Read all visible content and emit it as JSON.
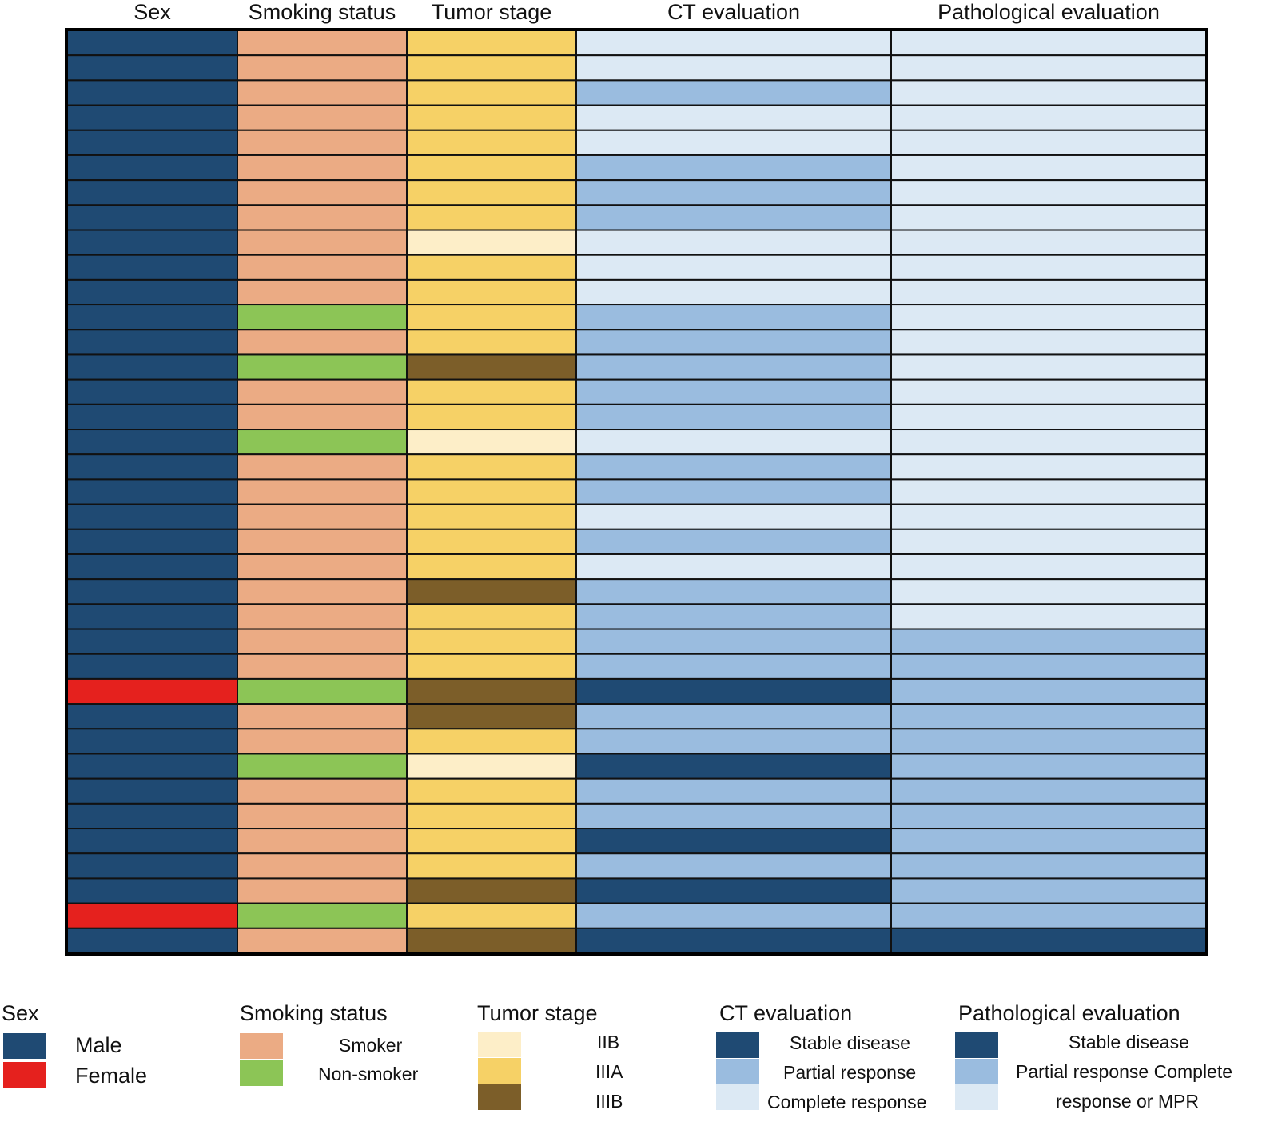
{
  "chart_data": {
    "type": "heatmap",
    "columns": [
      {
        "key": "sex",
        "label": "Sex"
      },
      {
        "key": "smoking",
        "label": "Smoking status"
      },
      {
        "key": "stage",
        "label": "Tumor stage"
      },
      {
        "key": "ct",
        "label": "CT evaluation"
      },
      {
        "key": "path",
        "label": "Pathological evaluation"
      }
    ],
    "categories": {
      "sex": [
        {
          "code": "M",
          "label": "Male",
          "color": "#1f4a73"
        },
        {
          "code": "F",
          "label": "Female",
          "color": "#e5211e"
        }
      ],
      "smoking": [
        {
          "code": "S",
          "label": "Smoker",
          "color": "#ebab84"
        },
        {
          "code": "N",
          "label": "Non-smoker",
          "color": "#8cc556"
        }
      ],
      "stage": [
        {
          "code": "IIB",
          "label": "IIB",
          "color": "#fdeec8"
        },
        {
          "code": "IIIA",
          "label": "IIIA",
          "color": "#f6d166"
        },
        {
          "code": "IIIB",
          "label": "IIIB",
          "color": "#7c5e29"
        }
      ],
      "ct": [
        {
          "code": "SD",
          "label": "Stable disease",
          "color": "#1f4a73"
        },
        {
          "code": "PR",
          "label": "Partial response",
          "color": "#9abcdf"
        },
        {
          "code": "CR",
          "label": "Complete response",
          "color": "#dce9f4"
        }
      ],
      "path": [
        {
          "code": "SD",
          "label": "Stable disease",
          "color": "#1f4a73"
        },
        {
          "code": "PR",
          "label": "Partial response Complete",
          "color": "#9abcdf"
        },
        {
          "code": "CR",
          "label": "response or MPR",
          "color": "#dce9f4"
        }
      ]
    },
    "rows": [
      {
        "sex": "M",
        "smoking": "S",
        "stage": "IIIA",
        "ct": "CR",
        "path": "CR"
      },
      {
        "sex": "M",
        "smoking": "S",
        "stage": "IIIA",
        "ct": "CR",
        "path": "CR"
      },
      {
        "sex": "M",
        "smoking": "S",
        "stage": "IIIA",
        "ct": "PR",
        "path": "CR"
      },
      {
        "sex": "M",
        "smoking": "S",
        "stage": "IIIA",
        "ct": "CR",
        "path": "CR"
      },
      {
        "sex": "M",
        "smoking": "S",
        "stage": "IIIA",
        "ct": "CR",
        "path": "CR"
      },
      {
        "sex": "M",
        "smoking": "S",
        "stage": "IIIA",
        "ct": "PR",
        "path": "CR"
      },
      {
        "sex": "M",
        "smoking": "S",
        "stage": "IIIA",
        "ct": "PR",
        "path": "CR"
      },
      {
        "sex": "M",
        "smoking": "S",
        "stage": "IIIA",
        "ct": "PR",
        "path": "CR"
      },
      {
        "sex": "M",
        "smoking": "S",
        "stage": "IIB",
        "ct": "CR",
        "path": "CR"
      },
      {
        "sex": "M",
        "smoking": "S",
        "stage": "IIIA",
        "ct": "CR",
        "path": "CR"
      },
      {
        "sex": "M",
        "smoking": "S",
        "stage": "IIIA",
        "ct": "CR",
        "path": "CR"
      },
      {
        "sex": "M",
        "smoking": "N",
        "stage": "IIIA",
        "ct": "PR",
        "path": "CR"
      },
      {
        "sex": "M",
        "smoking": "S",
        "stage": "IIIA",
        "ct": "PR",
        "path": "CR"
      },
      {
        "sex": "M",
        "smoking": "N",
        "stage": "IIIB",
        "ct": "PR",
        "path": "CR"
      },
      {
        "sex": "M",
        "smoking": "S",
        "stage": "IIIA",
        "ct": "PR",
        "path": "CR"
      },
      {
        "sex": "M",
        "smoking": "S",
        "stage": "IIIA",
        "ct": "PR",
        "path": "CR"
      },
      {
        "sex": "M",
        "smoking": "N",
        "stage": "IIB",
        "ct": "CR",
        "path": "CR"
      },
      {
        "sex": "M",
        "smoking": "S",
        "stage": "IIIA",
        "ct": "PR",
        "path": "CR"
      },
      {
        "sex": "M",
        "smoking": "S",
        "stage": "IIIA",
        "ct": "PR",
        "path": "CR"
      },
      {
        "sex": "M",
        "smoking": "S",
        "stage": "IIIA",
        "ct": "CR",
        "path": "CR"
      },
      {
        "sex": "M",
        "smoking": "S",
        "stage": "IIIA",
        "ct": "PR",
        "path": "CR"
      },
      {
        "sex": "M",
        "smoking": "S",
        "stage": "IIIA",
        "ct": "CR",
        "path": "CR"
      },
      {
        "sex": "M",
        "smoking": "S",
        "stage": "IIIB",
        "ct": "PR",
        "path": "CR"
      },
      {
        "sex": "M",
        "smoking": "S",
        "stage": "IIIA",
        "ct": "PR",
        "path": "CR"
      },
      {
        "sex": "M",
        "smoking": "S",
        "stage": "IIIA",
        "ct": "PR",
        "path": "PR"
      },
      {
        "sex": "M",
        "smoking": "S",
        "stage": "IIIA",
        "ct": "PR",
        "path": "PR"
      },
      {
        "sex": "F",
        "smoking": "N",
        "stage": "IIIB",
        "ct": "SD",
        "path": "PR"
      },
      {
        "sex": "M",
        "smoking": "S",
        "stage": "IIIB",
        "ct": "PR",
        "path": "PR"
      },
      {
        "sex": "M",
        "smoking": "S",
        "stage": "IIIA",
        "ct": "PR",
        "path": "PR"
      },
      {
        "sex": "M",
        "smoking": "N",
        "stage": "IIB",
        "ct": "SD",
        "path": "PR"
      },
      {
        "sex": "M",
        "smoking": "S",
        "stage": "IIIA",
        "ct": "PR",
        "path": "PR"
      },
      {
        "sex": "M",
        "smoking": "S",
        "stage": "IIIA",
        "ct": "PR",
        "path": "PR"
      },
      {
        "sex": "M",
        "smoking": "S",
        "stage": "IIIA",
        "ct": "SD",
        "path": "PR"
      },
      {
        "sex": "M",
        "smoking": "S",
        "stage": "IIIA",
        "ct": "PR",
        "path": "PR"
      },
      {
        "sex": "M",
        "smoking": "S",
        "stage": "IIIB",
        "ct": "SD",
        "path": "PR"
      },
      {
        "sex": "F",
        "smoking": "N",
        "stage": "IIIA",
        "ct": "PR",
        "path": "PR"
      },
      {
        "sex": "M",
        "smoking": "S",
        "stage": "IIIB",
        "ct": "SD",
        "path": "SD"
      }
    ]
  },
  "legend": {
    "sex": {
      "title": "Sex",
      "items": [
        "Male",
        "Female"
      ]
    },
    "smoking": {
      "title": "Smoking status",
      "items": [
        "Smoker",
        "Non-smoker"
      ]
    },
    "stage": {
      "title": "Tumor stage",
      "items": [
        "IIB",
        "IIIA",
        "IIIB"
      ]
    },
    "ct": {
      "title": "CT evaluation",
      "items": [
        "Stable disease",
        "Partial response",
        "Complete response"
      ]
    },
    "path": {
      "title": "Pathological evaluation",
      "items": [
        "Stable disease",
        "Partial response Complete",
        "response or MPR"
      ]
    }
  }
}
